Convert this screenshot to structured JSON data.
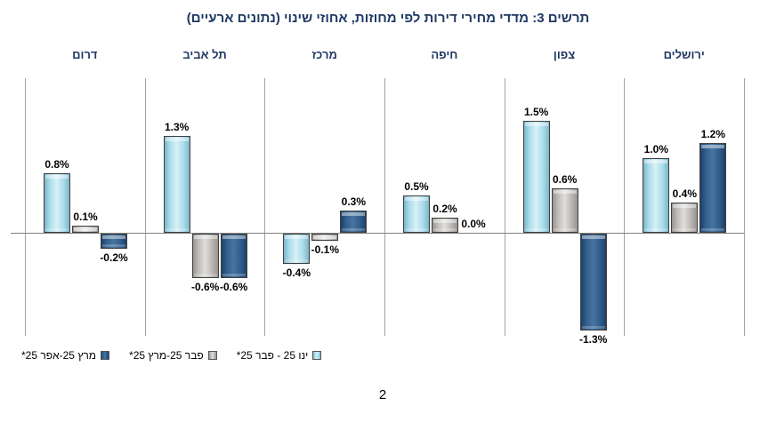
{
  "page": {
    "number": "2"
  },
  "chart_data": {
    "type": "bar",
    "title": "תרשים 3: מדדי מחירי דירות לפי מחוזות, אחוזי שינוי (נתונים ארעיים)",
    "direction": "rtl",
    "unit": "%",
    "ylim": [
      -1.5,
      2.1
    ],
    "grid": "vertical panel separators and zero baseline only",
    "legend_position": "bottom-left",
    "categories_rtl_reading": [
      "ירושלים",
      "צפון",
      "חיפה",
      "מרכז",
      "תל אביב",
      "דרום"
    ],
    "categories_visual_ltr": [
      "דרום",
      "תל אביב",
      "מרכז",
      "חיפה",
      "צפון",
      "ירושלים"
    ],
    "series": [
      {
        "name": "ינו 25 - פבר 25*",
        "color": "#A7DBE9",
        "color_key": "light",
        "values_visual_ltr": [
          0.8,
          1.3,
          -0.4,
          0.5,
          1.5,
          1.0
        ]
      },
      {
        "name": "פבר 25-מרץ 25*",
        "color": "#B7B4B1",
        "color_key": "gray",
        "values_visual_ltr": [
          0.1,
          -0.6,
          -0.1,
          0.2,
          0.6,
          0.4
        ]
      },
      {
        "name": "מרץ 25-אפר 25*",
        "color": "#2F5B8C",
        "color_key": "dark",
        "values_visual_ltr": [
          -0.2,
          -0.6,
          0.3,
          0.0,
          -1.3,
          1.2
        ]
      }
    ],
    "value_labels_visual_ltr": [
      [
        "0.8%",
        "0.1%",
        "-0.2%"
      ],
      [
        "1.3%",
        "-0.6%",
        "-0.6%"
      ],
      [
        "-0.4%",
        "-0.1%",
        "0.3%"
      ],
      [
        "0.5%",
        "0.2%",
        "0.0%"
      ],
      [
        "1.5%",
        "0.6%",
        "-1.3%"
      ],
      [
        "1.0%",
        "0.4%",
        "1.2%"
      ]
    ],
    "legend_items_visual_ltr": [
      {
        "label": "מרץ 25-אפר 25*",
        "color_key": "dark"
      },
      {
        "label": "פבר 25-מרץ 25*",
        "color_key": "gray"
      },
      {
        "label": "ינו 25 - פבר 25*",
        "color_key": "light"
      }
    ],
    "colors": {
      "title": "#1F3864",
      "panel_header": "#1F3864",
      "value_label": "#000000",
      "grid_line": "#A3A3A3",
      "zero_line": "#808080",
      "light": "#A7DBE9",
      "gray": "#B7B4B1",
      "dark": "#2F5B8C"
    }
  }
}
